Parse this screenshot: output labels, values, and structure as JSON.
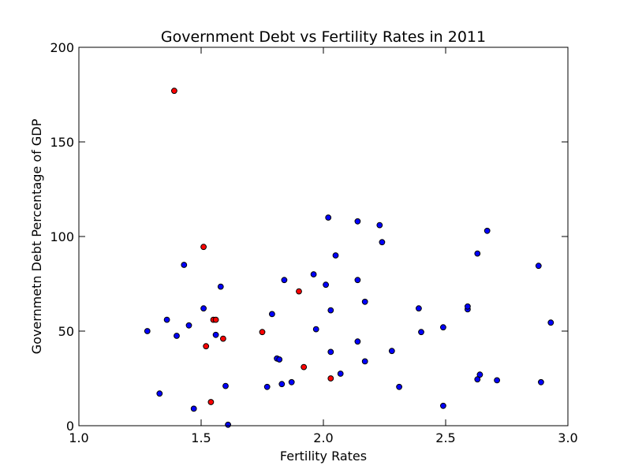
{
  "chart_data": {
    "type": "scatter",
    "title": "Government Debt vs Fertility Rates in 2011",
    "xlabel": "Fertility Rates",
    "ylabel": "Governmetn Debt Percentage of GDP",
    "xlim": [
      1.0,
      3.0
    ],
    "ylim": [
      0,
      200
    ],
    "xticks": [
      "1.0",
      "1.5",
      "2.0",
      "2.5",
      "3.0"
    ],
    "yticks": [
      "0",
      "50",
      "100",
      "150",
      "200"
    ],
    "grid": false,
    "legend": "none",
    "series": [
      {
        "color": "#0000ff",
        "points": [
          [
            1.28,
            50
          ],
          [
            1.33,
            17
          ],
          [
            1.36,
            56
          ],
          [
            1.4,
            47.5
          ],
          [
            1.43,
            85
          ],
          [
            1.45,
            53
          ],
          [
            1.47,
            9
          ],
          [
            1.51,
            62
          ],
          [
            1.56,
            48
          ],
          [
            1.58,
            73.5
          ],
          [
            1.6,
            21
          ],
          [
            1.61,
            0.5
          ],
          [
            1.77,
            20.5
          ],
          [
            1.79,
            59
          ],
          [
            1.81,
            35.5
          ],
          [
            1.82,
            35
          ],
          [
            1.83,
            22
          ],
          [
            1.84,
            77
          ],
          [
            1.87,
            23
          ],
          [
            1.96,
            80
          ],
          [
            1.97,
            51
          ],
          [
            2.01,
            74.5
          ],
          [
            2.02,
            110
          ],
          [
            2.03,
            39
          ],
          [
            2.03,
            61
          ],
          [
            2.05,
            90
          ],
          [
            2.07,
            27.5
          ],
          [
            2.14,
            108
          ],
          [
            2.14,
            77
          ],
          [
            2.14,
            44.5
          ],
          [
            2.17,
            65.5
          ],
          [
            2.17,
            34
          ],
          [
            2.23,
            106
          ],
          [
            2.24,
            97
          ],
          [
            2.28,
            39.5
          ],
          [
            2.31,
            20.5
          ],
          [
            2.39,
            62
          ],
          [
            2.4,
            49.5
          ],
          [
            2.49,
            52
          ],
          [
            2.49,
            10.5
          ],
          [
            2.59,
            61.5
          ],
          [
            2.59,
            63
          ],
          [
            2.63,
            91
          ],
          [
            2.63,
            24.5
          ],
          [
            2.64,
            27
          ],
          [
            2.67,
            103
          ],
          [
            2.71,
            24
          ],
          [
            2.88,
            84.5
          ],
          [
            2.89,
            23
          ],
          [
            2.93,
            54.5
          ]
        ]
      },
      {
        "color": "#ff0000",
        "points": [
          [
            1.39,
            177
          ],
          [
            1.51,
            94.5
          ],
          [
            1.52,
            42
          ],
          [
            1.54,
            12.5
          ],
          [
            1.55,
            56
          ],
          [
            1.56,
            56
          ],
          [
            1.59,
            46
          ],
          [
            1.75,
            49.5
          ],
          [
            1.9,
            71
          ],
          [
            1.92,
            31
          ],
          [
            2.03,
            25
          ]
        ]
      }
    ]
  }
}
